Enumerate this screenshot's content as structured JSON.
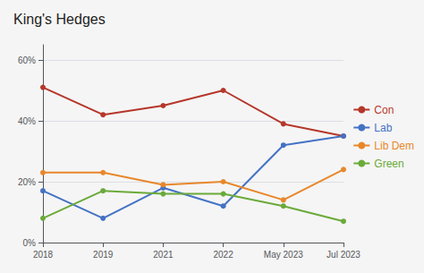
{
  "chart_data": {
    "type": "line",
    "title": "King's Hedges",
    "categories": [
      "2018",
      "2019",
      "2021",
      "2022",
      "May 2023",
      "Jul 2023"
    ],
    "series": [
      {
        "name": "Con",
        "color": "#b5372a",
        "values": [
          51,
          42,
          45,
          50,
          39,
          35
        ]
      },
      {
        "name": "Lab",
        "color": "#4472c4",
        "values": [
          17,
          8,
          18,
          12,
          32,
          35
        ]
      },
      {
        "name": "Lib Dem",
        "color": "#e8872a",
        "values": [
          23,
          23,
          19,
          20,
          14,
          24
        ]
      },
      {
        "name": "Green",
        "color": "#6aaa3a",
        "values": [
          8,
          17,
          16,
          16,
          12,
          7
        ]
      }
    ],
    "ylim": [
      0,
      65
    ],
    "yticks": [
      {
        "value": 0,
        "label": "0%"
      },
      {
        "value": 20,
        "label": "20%"
      },
      {
        "value": 40,
        "label": "40%"
      },
      {
        "value": 60,
        "label": "60%"
      }
    ],
    "grid": true,
    "legend": "right",
    "marker": "circle"
  }
}
